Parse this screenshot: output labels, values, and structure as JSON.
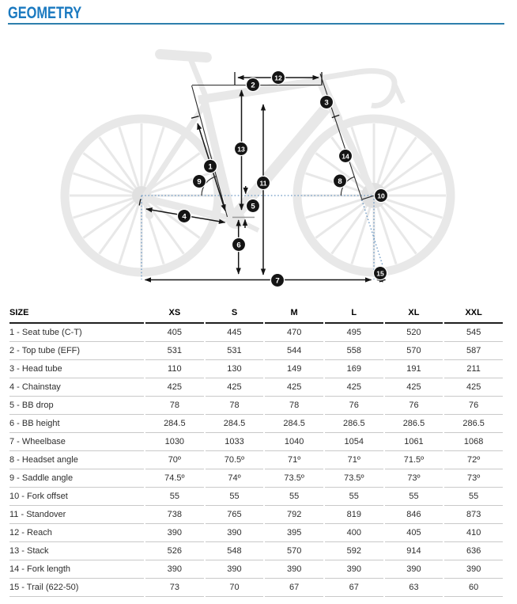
{
  "page": {
    "title": "GEOMETRY"
  },
  "theme": {
    "title_color": "#1a79c0",
    "rule_color": "#2e7fad",
    "dotted_line_color": "#6b98c4",
    "silhouette_color": "#e8e8e8",
    "marker_bg": "#141414",
    "marker_text": "#ffffff"
  },
  "diagram": {
    "description": "faded-bike-side-view-with-numbered-dimension-callouts",
    "markers": [
      {
        "label": "1"
      },
      {
        "label": "2"
      },
      {
        "label": "3"
      },
      {
        "label": "4"
      },
      {
        "label": "5"
      },
      {
        "label": "6"
      },
      {
        "label": "7"
      },
      {
        "label": "8"
      },
      {
        "label": "9"
      },
      {
        "label": "10"
      },
      {
        "label": "11"
      },
      {
        "label": "12"
      },
      {
        "label": "13"
      },
      {
        "label": "14"
      },
      {
        "label": "15"
      }
    ]
  },
  "table": {
    "size_header": "SIZE",
    "columns": [
      "XS",
      "S",
      "M",
      "L",
      "XL",
      "XXL"
    ],
    "rows": [
      {
        "label": "1 - Seat tube (C-T)",
        "values": [
          "405",
          "445",
          "470",
          "495",
          "520",
          "545"
        ]
      },
      {
        "label": "2 - Top tube (EFF)",
        "values": [
          "531",
          "531",
          "544",
          "558",
          "570",
          "587"
        ]
      },
      {
        "label": "3 - Head tube",
        "values": [
          "110",
          "130",
          "149",
          "169",
          "191",
          "211"
        ]
      },
      {
        "label": "4 - Chainstay",
        "values": [
          "425",
          "425",
          "425",
          "425",
          "425",
          "425"
        ]
      },
      {
        "label": "5 - BB drop",
        "values": [
          "78",
          "78",
          "78",
          "76",
          "76",
          "76"
        ]
      },
      {
        "label": "6 - BB height",
        "values": [
          "284.5",
          "284.5",
          "284.5",
          "286.5",
          "286.5",
          "286.5"
        ]
      },
      {
        "label": "7 - Wheelbase",
        "values": [
          "1030",
          "1033",
          "1040",
          "1054",
          "1061",
          "1068"
        ]
      },
      {
        "label": "8 - Headset angle",
        "values": [
          "70º",
          "70.5º",
          "71º",
          "71º",
          "71.5º",
          "72º"
        ]
      },
      {
        "label": "9 - Saddle angle",
        "values": [
          "74.5º",
          "74º",
          "73.5º",
          "73.5º",
          "73º",
          "73º"
        ]
      },
      {
        "label": "10 - Fork offset",
        "values": [
          "55",
          "55",
          "55",
          "55",
          "55",
          "55"
        ]
      },
      {
        "label": "11 - Standover",
        "values": [
          "738",
          "765",
          "792",
          "819",
          "846",
          "873"
        ]
      },
      {
        "label": "12 - Reach",
        "values": [
          "390",
          "390",
          "395",
          "400",
          "405",
          "410"
        ]
      },
      {
        "label": "13 - Stack",
        "values": [
          "526",
          "548",
          "570",
          "592",
          "914",
          "636"
        ]
      },
      {
        "label": "14 - Fork length",
        "values": [
          "390",
          "390",
          "390",
          "390",
          "390",
          "390"
        ]
      },
      {
        "label": "15 - Trail (622-50)",
        "values": [
          "73",
          "70",
          "67",
          "67",
          "63",
          "60"
        ]
      }
    ]
  }
}
